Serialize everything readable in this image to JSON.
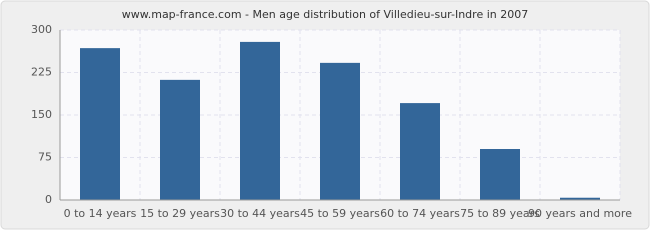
{
  "chart_data": {
    "type": "bar",
    "title": "www.map-france.com - Men age distribution of Villedieu-sur-Indre in 2007",
    "categories": [
      "0 to 14 years",
      "15 to 29 years",
      "30 to 44 years",
      "45 to 59 years",
      "60 to 74 years",
      "75 to 89 years",
      "90 years and more"
    ],
    "values": [
      268,
      212,
      279,
      242,
      171,
      90,
      4
    ],
    "color": "#336699",
    "ylim": [
      0,
      300
    ],
    "yticks": [
      0,
      75,
      150,
      225,
      300
    ],
    "grid": true
  }
}
